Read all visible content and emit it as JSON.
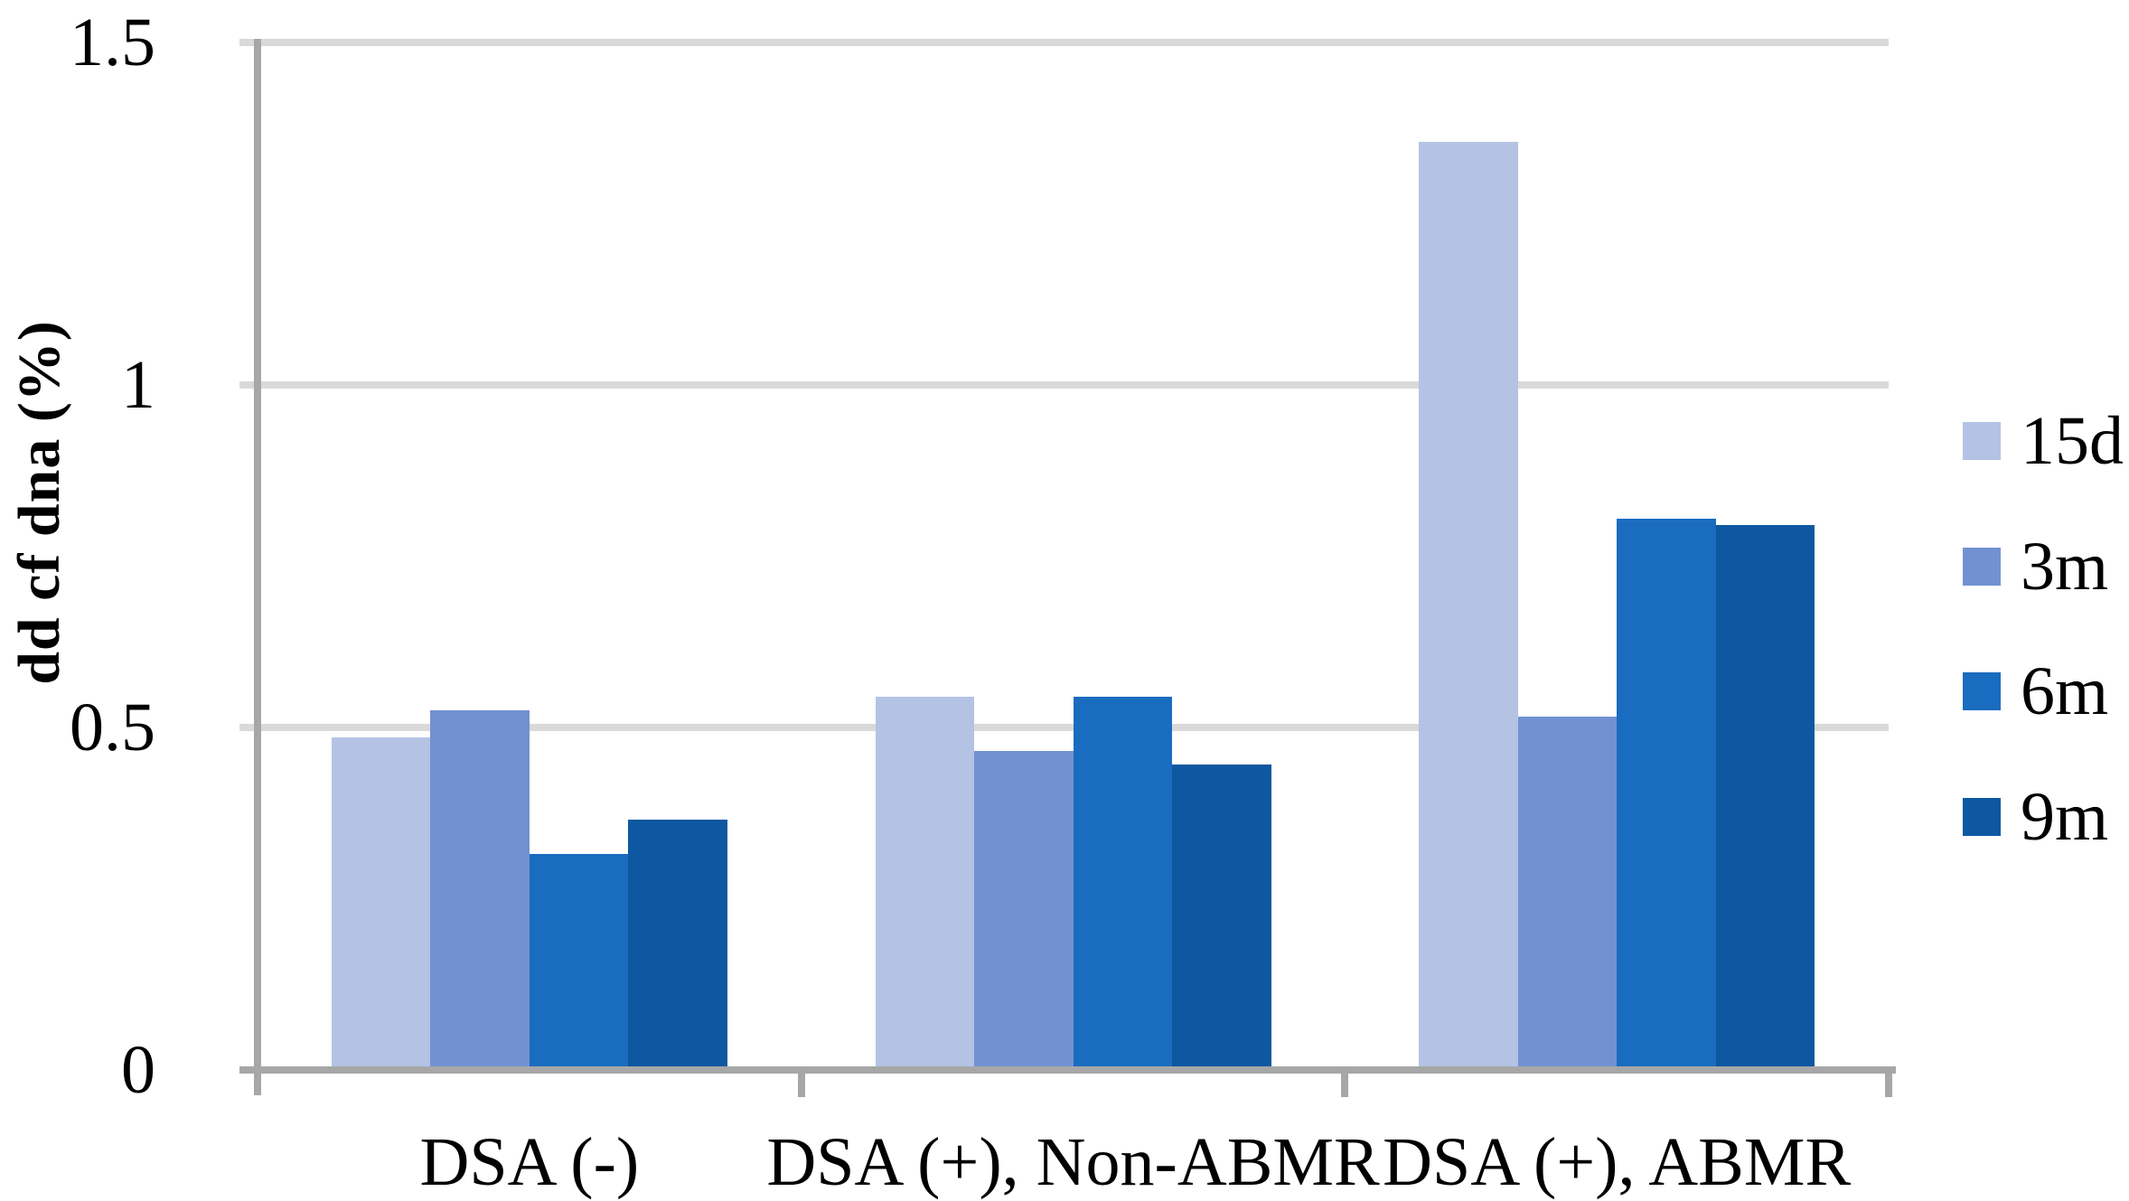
{
  "chart_data": {
    "type": "bar",
    "title": "",
    "xlabel": "",
    "ylabel": "dd cf dna (%)",
    "categories": [
      "DSA (-)",
      "DSA (+), Non-ABMR",
      "DSA (+), ABMR"
    ],
    "series": [
      {
        "name": "15d",
        "color": "#b4c3e4",
        "values": [
          0.48,
          0.54,
          1.35
        ]
      },
      {
        "name": "3m",
        "color": "#7291d0",
        "values": [
          0.52,
          0.46,
          0.51
        ]
      },
      {
        "name": "6m",
        "color": "#1a6cc0",
        "values": [
          0.31,
          0.54,
          0.8
        ]
      },
      {
        "name": "9m",
        "color": "#0d58a1",
        "values": [
          0.36,
          0.44,
          0.79
        ]
      }
    ],
    "ylim": [
      0,
      1.5
    ],
    "yticks": [
      0,
      0.5,
      1,
      1.5
    ],
    "ytick_labels": [
      "0",
      "0.5",
      "1",
      "1.5"
    ],
    "grid": true,
    "legend_position": "right",
    "colors": {
      "gridline": "#d9d9d9",
      "axis": "#a7a7a7",
      "text": "#000000",
      "background": "#ffffff"
    }
  }
}
